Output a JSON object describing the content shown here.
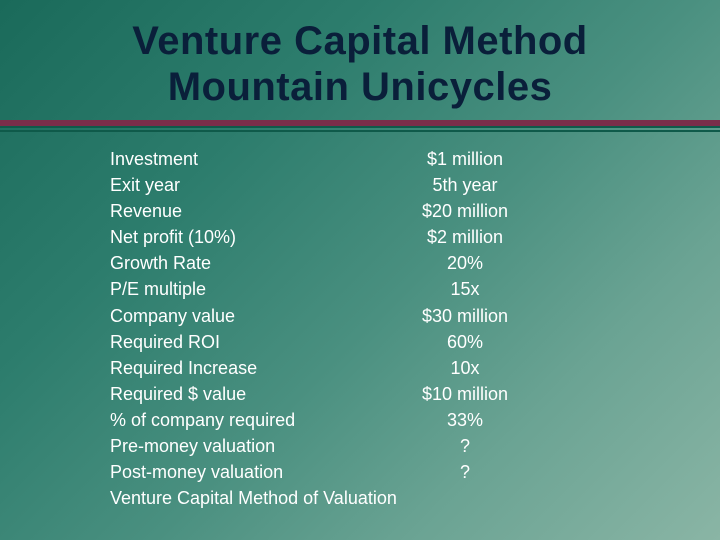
{
  "title_line1": "Venture Capital Method",
  "title_line2": "Mountain Unicycles",
  "colors": {
    "background_gradient_start": "#1a6a5a",
    "background_gradient_end": "#8ab5a5",
    "title_color": "#0a1f3a",
    "rule_color_primary": "#7a2e4a",
    "rule_color_secondary": "#0f5a4a",
    "text_color": "#ffffff"
  },
  "typography": {
    "title_fontsize": 40,
    "body_fontsize": 18,
    "title_weight": 900
  },
  "rows": [
    {
      "label": "Investment",
      "value": "$1 million"
    },
    {
      "label": "Exit year",
      "value": "5th year"
    },
    {
      "label": "Revenue",
      "value": "$20 million"
    },
    {
      "label": "Net profit (10%)",
      "value": "$2 million"
    },
    {
      "label": "Growth Rate",
      "value": "20%"
    },
    {
      "label": "P/E multiple",
      "value": "15x"
    },
    {
      "label": "Company value",
      "value": "$30 million"
    },
    {
      "label": "Required ROI",
      "value": "60%"
    },
    {
      "label": "Required Increase",
      "value": "10x"
    },
    {
      "label": "Required $ value",
      "value": "$10 million"
    },
    {
      "label": "% of company required",
      "value": "33%"
    },
    {
      "label": "Pre-money valuation",
      "value": "?"
    },
    {
      "label": "Post-money valuation",
      "value": "?"
    }
  ],
  "footer": "Venture Capital Method of Valuation"
}
